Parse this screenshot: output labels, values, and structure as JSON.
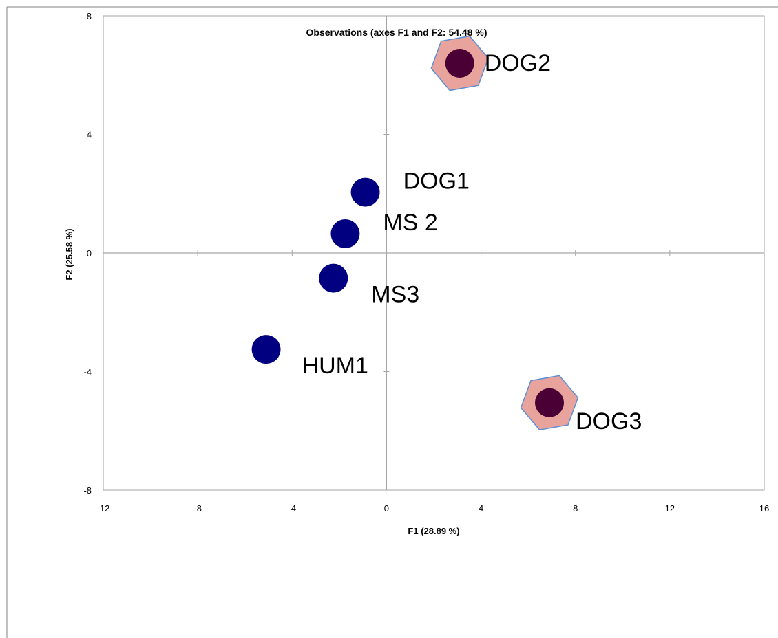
{
  "chart_data": {
    "type": "scatter",
    "title": "Observations (axes F1 and F2: 54.48 %)",
    "xlabel": "F1 (28.89 %)",
    "ylabel": "F2 (25.58 %)",
    "xlim": [
      -12,
      16
    ],
    "ylim": [
      -8,
      8
    ],
    "xticks": [
      -12,
      -8,
      -4,
      0,
      4,
      8,
      12,
      16
    ],
    "yticks": [
      -8,
      -4,
      0,
      4,
      8
    ],
    "xtick_labels": [
      "-12",
      "-8",
      "-4",
      "0",
      "4",
      "8",
      "12",
      "16"
    ],
    "ytick_labels": [
      "-8",
      "-4",
      "0",
      "4",
      "8"
    ],
    "grid": false,
    "colors": {
      "point": "#000080",
      "highlight_point": "#4b0035",
      "hexagon_fill": "#e8a39c",
      "hexagon_stroke": "#5b8ed6",
      "axis": "#a6a6a6"
    },
    "points": [
      {
        "label": "DOG2",
        "x": 3.1,
        "y": 6.4,
        "highlight": true
      },
      {
        "label": "DOG1",
        "x": -0.9,
        "y": 2.05,
        "highlight": false
      },
      {
        "label": "MS 2",
        "x": -1.75,
        "y": 0.65,
        "highlight": false
      },
      {
        "label": "MS3",
        "x": -2.25,
        "y": -0.85,
        "highlight": false
      },
      {
        "label": "HUM1",
        "x": -5.1,
        "y": -3.25,
        "highlight": false
      },
      {
        "label": "DOG3",
        "x": 6.9,
        "y": -5.05,
        "highlight": true
      }
    ]
  }
}
